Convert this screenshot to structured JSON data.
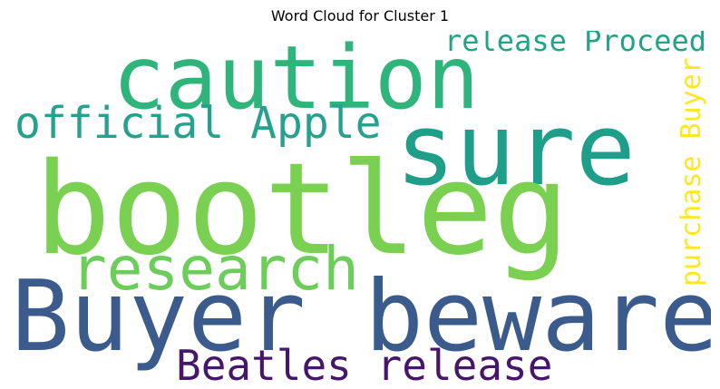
{
  "title": "Word Cloud for Cluster 1",
  "words": [
    {
      "text": "caution",
      "color": "#2fb47c"
    },
    {
      "text": "sure",
      "color": "#1f9e89"
    },
    {
      "text": "official Apple",
      "color": "#25a18e"
    },
    {
      "text": "release Proceed",
      "color": "#21a386"
    },
    {
      "text": "bootleg",
      "color": "#7ad151"
    },
    {
      "text": "research",
      "color": "#6ccd5a"
    },
    {
      "text": "Buyer beware",
      "color": "#3b5b8c"
    },
    {
      "text": "Beatles release",
      "color": "#46166b"
    },
    {
      "text": "purchase Buyer",
      "color": "#fde725"
    }
  ]
}
